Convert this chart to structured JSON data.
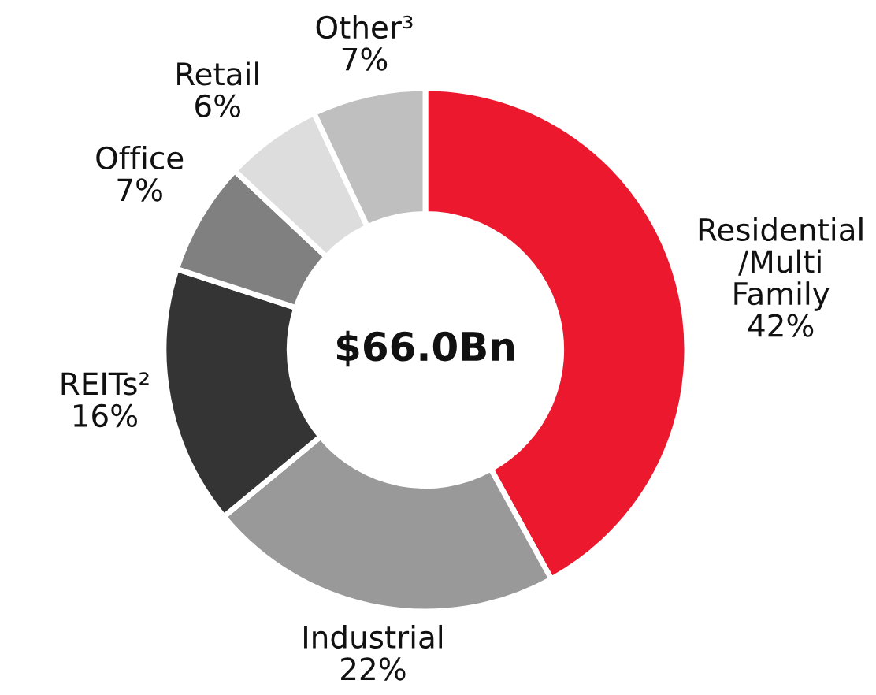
{
  "chart_data": {
    "type": "donut",
    "categories": [
      "Residential\n/Multi\nFamily",
      "Industrial",
      "REITs²",
      "Office",
      "Retail",
      "Other³"
    ],
    "values": [
      42,
      22,
      16,
      7,
      6,
      7
    ],
    "value_labels": [
      "42%",
      "22%",
      "16%",
      "7%",
      "6%",
      "7%"
    ],
    "colors": [
      "#ec192e",
      "#999999",
      "#343434",
      "#808080",
      "#dddddd",
      "#bfbfbf"
    ],
    "annotations": [
      "$66.0Bn"
    ],
    "legend": false
  }
}
